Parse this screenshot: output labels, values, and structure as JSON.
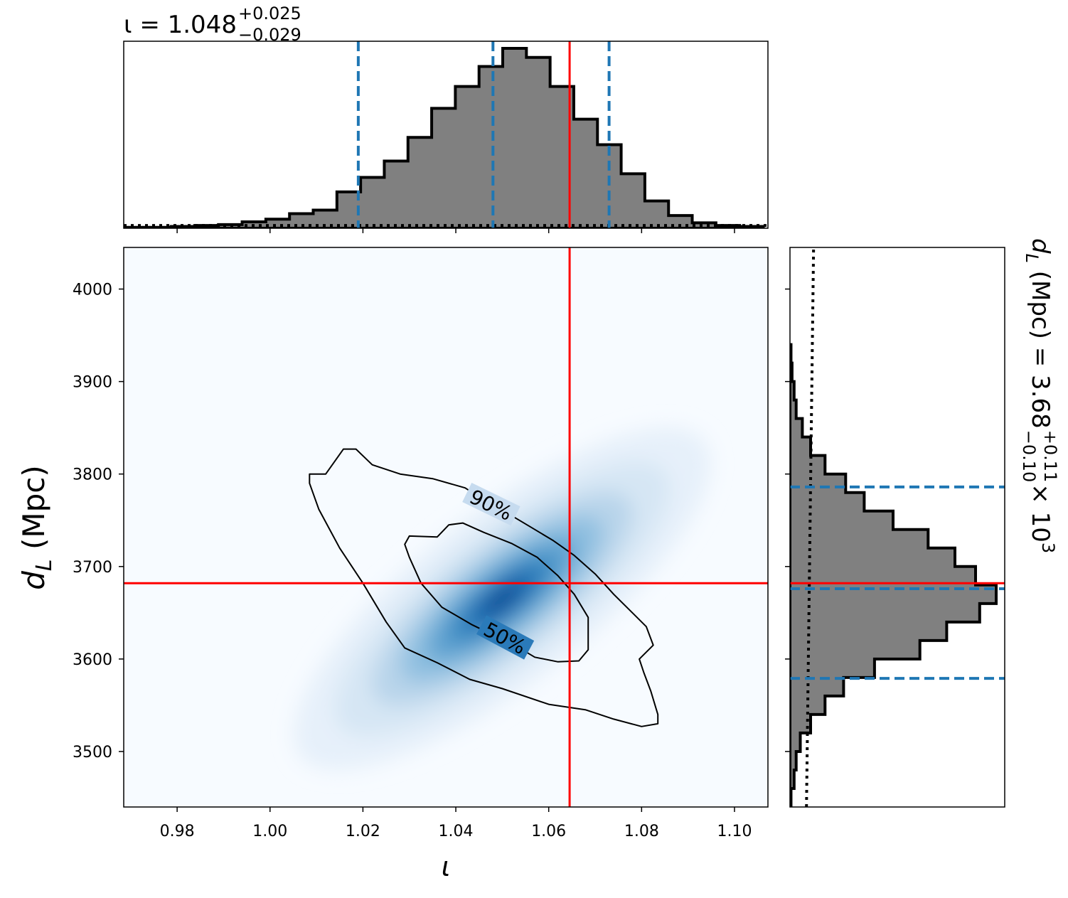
{
  "chart_data": {
    "type": "corner-plot",
    "parameters": [
      {
        "symbol": "ι",
        "unit": ""
      },
      {
        "symbol": "d",
        "subscript": "L",
        "unit": "(Mpc)"
      }
    ],
    "marginal_top": {
      "title": {
        "prefix": "ι = ",
        "median": "1.048",
        "upper": "+0.025",
        "lower": "−0.029"
      },
      "median": 1.048,
      "ci_low": 1.019,
      "ci_high": 1.073,
      "true_value": 1.0645,
      "bin_edges": [
        0.9685,
        0.9736,
        0.9787,
        0.9838,
        0.9889,
        0.994,
        0.9991,
        1.0042,
        1.0093,
        1.0144,
        1.0195,
        1.0246,
        1.0297,
        1.0348,
        1.0399,
        1.045,
        1.0501,
        1.0552,
        1.0603,
        1.0654,
        1.0705,
        1.0756,
        1.0807,
        1.0858,
        1.0909,
        1.096,
        1.1011,
        1.1062
      ],
      "counts": [
        0.5,
        0.5,
        1,
        1.5,
        2,
        3.5,
        5,
        8,
        10,
        20,
        28,
        37,
        50,
        66,
        78,
        89,
        99,
        94,
        78,
        60,
        46,
        30,
        15,
        7,
        3,
        1.5,
        1
      ],
      "prior_level": 1.5
    },
    "marginal_right": {
      "title": {
        "prefix": "d",
        "subscript": "L",
        "unit": " (Mpc) = ",
        "median": "3.68",
        "upper": "+0.11",
        "lower": "−0.10",
        "scale": " × 10",
        "exponent": "3"
      },
      "median": 3676,
      "ci_low": 3579,
      "ci_high": 3786,
      "true_value": 3682,
      "bin_edges": [
        3440,
        3460,
        3480,
        3500,
        3520,
        3540,
        3560,
        3580,
        3600,
        3620,
        3640,
        3660,
        3680,
        3700,
        3720,
        3740,
        3760,
        3780,
        3800,
        3820,
        3840,
        3860,
        3880,
        3900,
        3920,
        3940
      ],
      "counts": [
        0.5,
        2,
        3,
        5,
        10,
        17,
        26,
        41,
        63,
        76,
        92,
        100,
        90,
        80,
        67,
        50,
        36,
        27,
        17,
        10,
        6,
        3,
        2,
        1,
        0.5
      ],
      "prior_level": 8
    },
    "joint": {
      "x_range": [
        0.9685,
        1.1072
      ],
      "y_range": [
        3440,
        4045
      ],
      "x_ticks": [
        "0.98",
        "1.00",
        "1.02",
        "1.04",
        "1.06",
        "1.08",
        "1.10"
      ],
      "x_tick_values": [
        0.98,
        1.0,
        1.02,
        1.04,
        1.06,
        1.08,
        1.1
      ],
      "y_ticks": [
        "3500",
        "3600",
        "3700",
        "3800",
        "3900",
        "4000"
      ],
      "y_tick_values": [
        3500,
        3600,
        3700,
        3800,
        3900,
        4000
      ],
      "truth": {
        "x": 1.0645,
        "y": 3682
      },
      "density_center": {
        "x": 1.05,
        "y": 3665
      },
      "contour_labels": [
        "90%",
        "50%"
      ],
      "contour_90": [
        [
          1.0158,
          3827
        ],
        [
          1.0185,
          3827
        ],
        [
          1.022,
          3810
        ],
        [
          1.028,
          3800
        ],
        [
          1.035,
          3795
        ],
        [
          1.042,
          3785
        ],
        [
          1.046,
          3772
        ],
        [
          1.051,
          3758
        ],
        [
          1.056,
          3743
        ],
        [
          1.061,
          3728
        ],
        [
          1.0655,
          3712
        ],
        [
          1.07,
          3692
        ],
        [
          1.074,
          3670
        ],
        [
          1.078,
          3650
        ],
        [
          1.081,
          3635
        ],
        [
          1.0825,
          3615
        ],
        [
          1.0795,
          3600
        ],
        [
          1.0805,
          3585
        ],
        [
          1.082,
          3565
        ],
        [
          1.0835,
          3540
        ],
        [
          1.0835,
          3530
        ],
        [
          1.08,
          3527
        ],
        [
          1.074,
          3535
        ],
        [
          1.068,
          3545
        ],
        [
          1.06,
          3551
        ],
        [
          1.05,
          3568
        ],
        [
          1.043,
          3578
        ],
        [
          1.036,
          3596
        ],
        [
          1.029,
          3612
        ],
        [
          1.025,
          3640
        ],
        [
          1.02,
          3682
        ],
        [
          1.015,
          3720
        ],
        [
          1.0105,
          3762
        ],
        [
          1.0085,
          3790
        ],
        [
          1.0085,
          3800
        ],
        [
          1.012,
          3800
        ]
      ],
      "contour_50": [
        [
          1.03,
          3733
        ],
        [
          1.036,
          3732
        ],
        [
          1.0385,
          3745
        ],
        [
          1.0415,
          3747
        ],
        [
          1.046,
          3737
        ],
        [
          1.052,
          3725
        ],
        [
          1.0575,
          3710
        ],
        [
          1.062,
          3690
        ],
        [
          1.0655,
          3670
        ],
        [
          1.0685,
          3645
        ],
        [
          1.0685,
          3610
        ],
        [
          1.0665,
          3598
        ],
        [
          1.062,
          3597
        ],
        [
          1.057,
          3602
        ],
        [
          1.053,
          3614
        ],
        [
          1.048,
          3626
        ],
        [
          1.0435,
          3637
        ],
        [
          1.037,
          3656
        ],
        [
          1.0325,
          3682
        ],
        [
          1.03,
          3710
        ],
        [
          1.029,
          3724
        ]
      ]
    }
  },
  "colors": {
    "hist_fill": "#808080",
    "hist_edge": "#000000",
    "ci_line": "#1f77b4",
    "truth_line": "#ff0000",
    "density_cmap": "Blues"
  }
}
